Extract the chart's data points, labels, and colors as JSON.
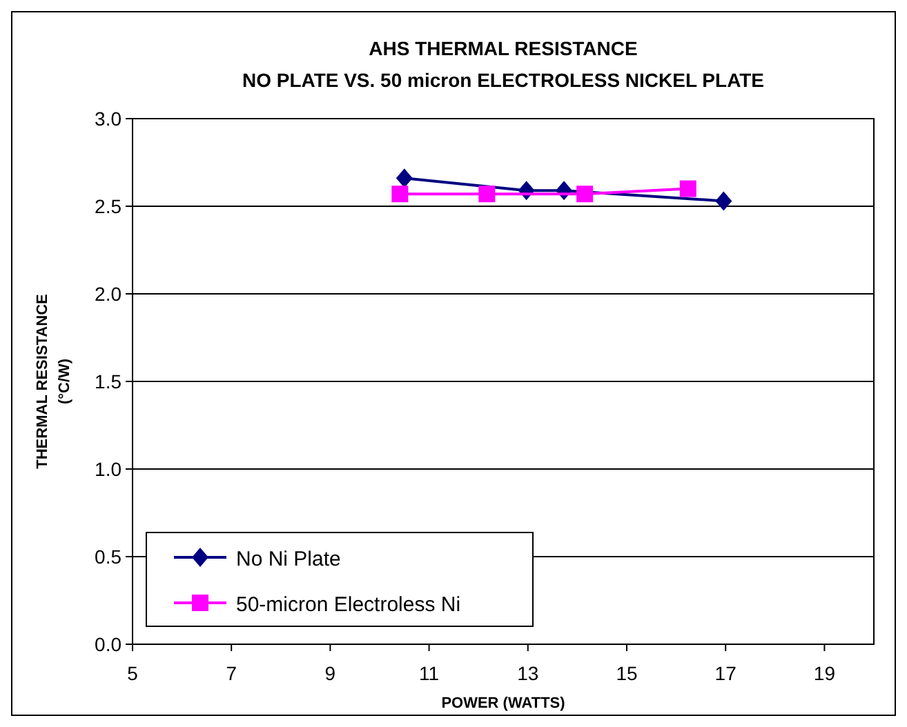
{
  "chart_data": {
    "type": "line",
    "title": "AHS THERMAL RESISTANCE\nNO  PLATE VS. 50 micron ELECTROLESS NICKEL PLATE",
    "xlabel": "POWER (WATTS)",
    "ylabel": "THERMAL RESISTANCE\n(°C/W)",
    "xlim": [
      5,
      20
    ],
    "xticks": [
      5,
      7,
      9,
      11,
      13,
      15,
      17,
      19
    ],
    "ylim": [
      0,
      3
    ],
    "yticks": [
      {
        "value": 0,
        "label": "0.0"
      },
      {
        "value": 0.5,
        "label": "0.5"
      },
      {
        "value": 1,
        "label": "1.0"
      },
      {
        "value": 1.5,
        "label": "1.5"
      },
      {
        "value": 2,
        "label": "2.0"
      },
      {
        "value": 2.5,
        "label": "2.5"
      },
      {
        "value": 3,
        "label": "3.0"
      }
    ],
    "grid": "y",
    "legend": "bottom left",
    "series": [
      {
        "name": "No Ni Plate",
        "color": "#000080",
        "marker": "diamond",
        "x": [
          10.5,
          12.97,
          13.73,
          16.96
        ],
        "values": [
          2.66,
          2.59,
          2.59,
          2.53
        ]
      },
      {
        "name": "50-micron Electroless Ni",
        "color": "#ff00ff",
        "marker": "square",
        "x": [
          10.41,
          12.17,
          14.15,
          16.24
        ],
        "values": [
          2.57,
          2.57,
          2.57,
          2.6
        ]
      }
    ]
  }
}
